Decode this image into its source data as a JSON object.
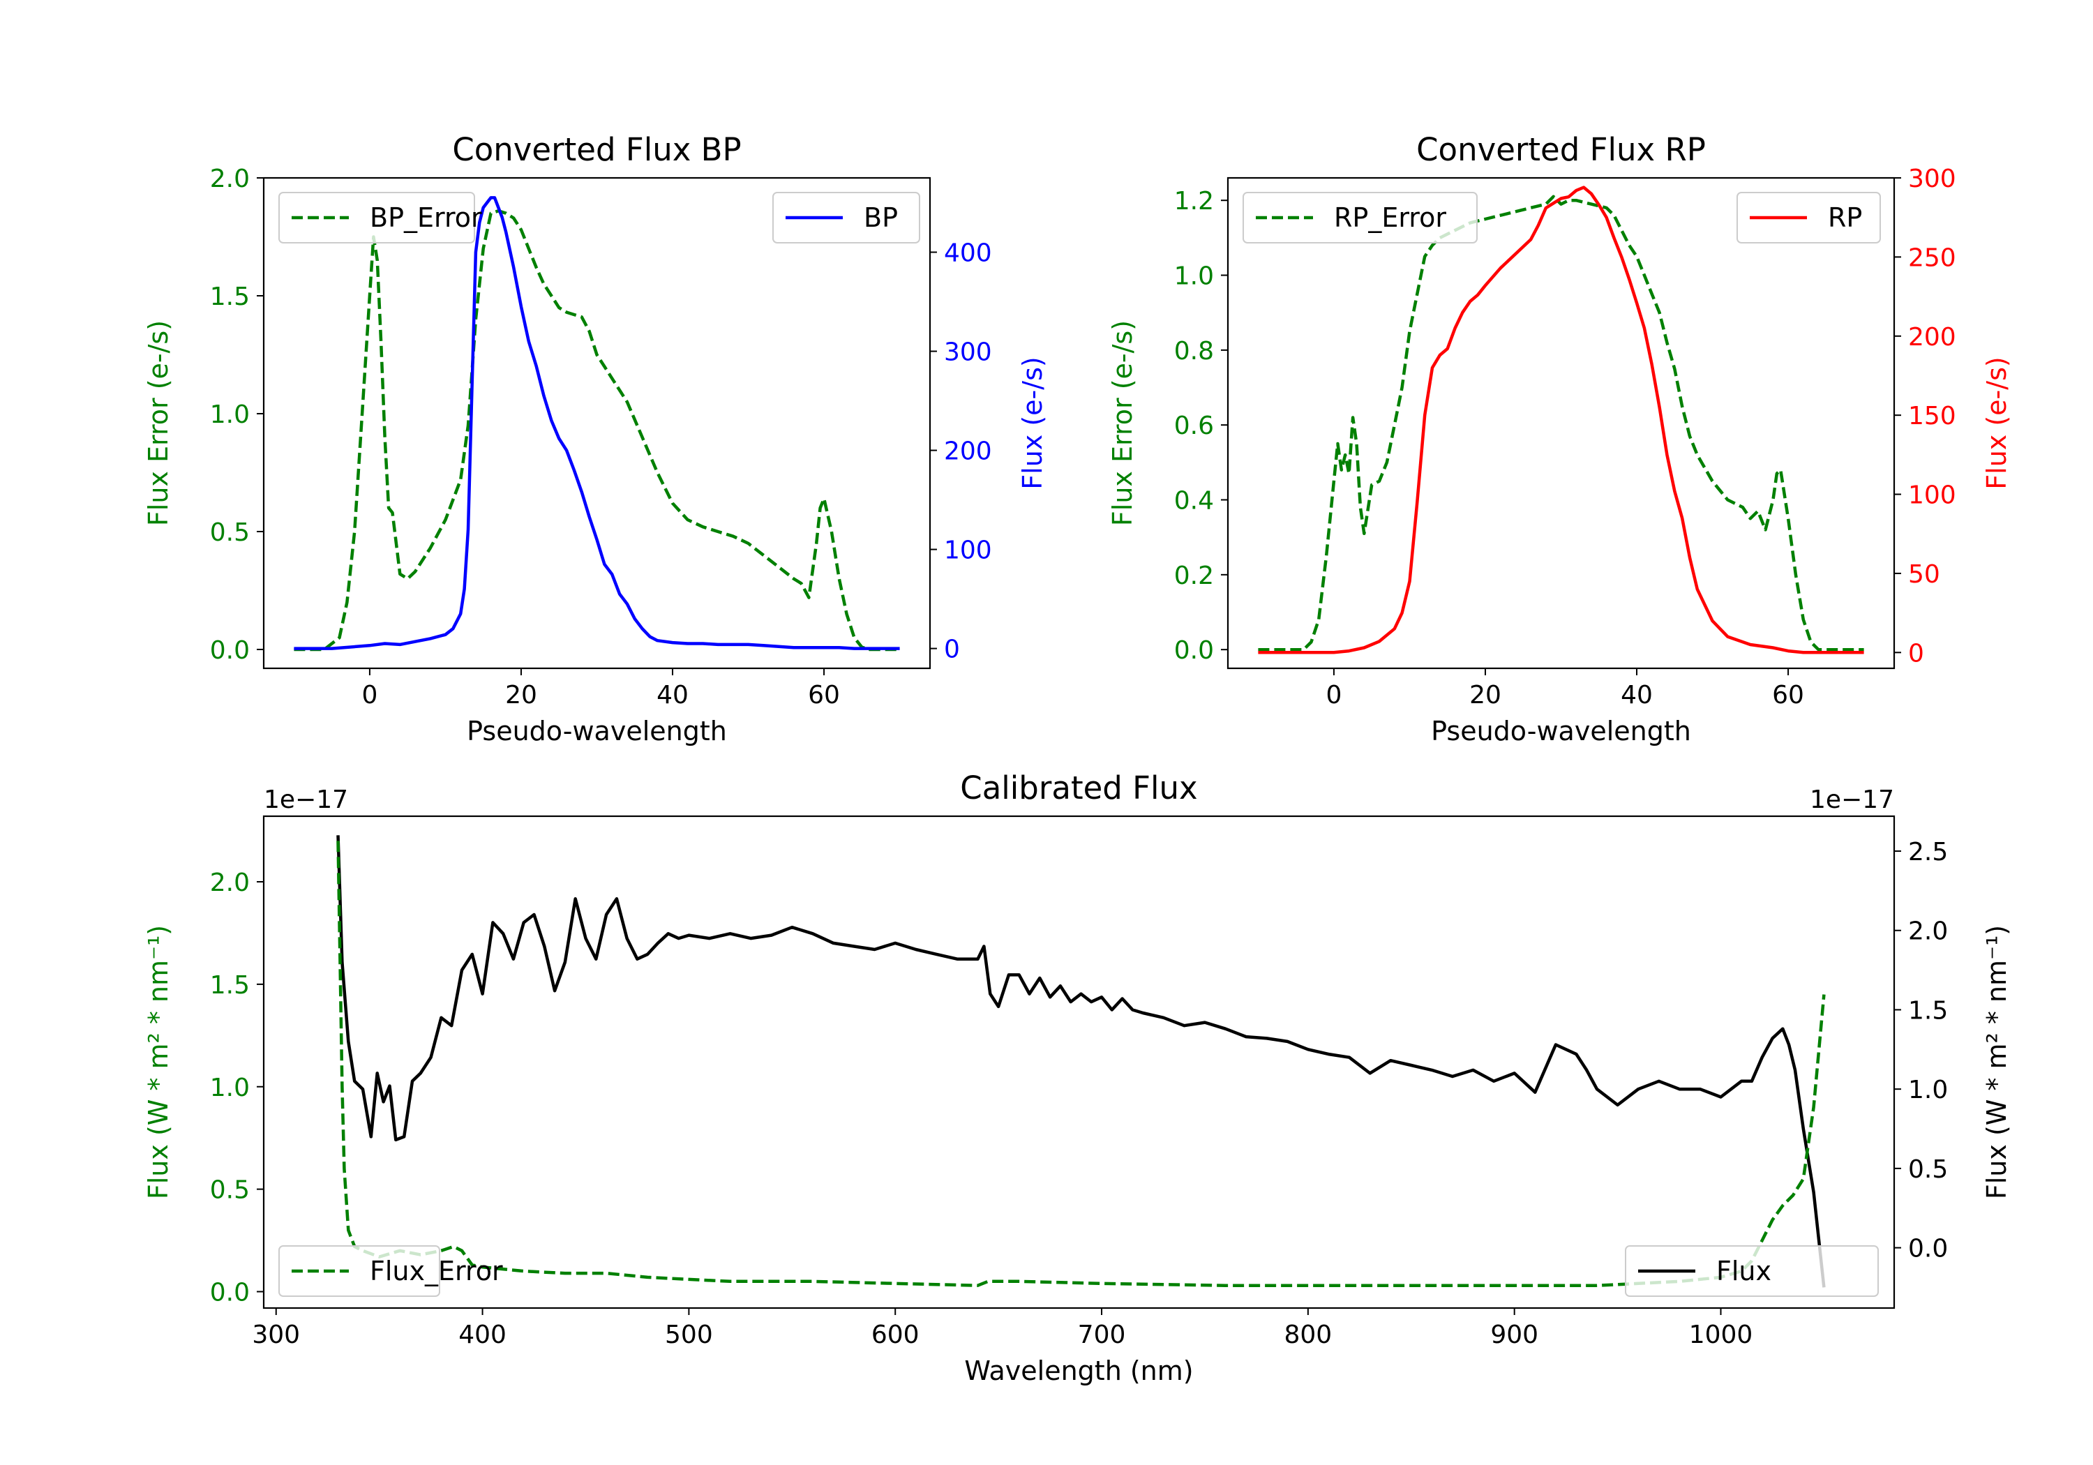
{
  "chart_data": [
    {
      "type": "line",
      "title": "Converted Flux BP",
      "xlabel": "Pseudo-wavelength",
      "ylabel_left": "Flux Error (e-/s)",
      "ylabel_right": "Flux (e-/s)",
      "xlim": [
        -14,
        74
      ],
      "ylim_left": [
        -0.08,
        2.0
      ],
      "ylim_right": [
        -20,
        475
      ],
      "xticks": [
        0,
        20,
        40,
        60
      ],
      "yticks_left": [
        0.0,
        0.5,
        1.0,
        1.5,
        2.0
      ],
      "yticks_right": [
        0,
        100,
        200,
        300,
        400
      ],
      "left_color": "#008000",
      "right_color": "#0000ff",
      "legend_left": "top-left",
      "legend_right": "top-right",
      "series": [
        {
          "name": "BP_Error",
          "axis": "left",
          "style": "dashed",
          "color": "#008000",
          "x": [
            -10,
            -6,
            -4,
            -3,
            -2,
            -1,
            0,
            0.5,
            1,
            1.5,
            2,
            2.5,
            3,
            3.5,
            4,
            5,
            6,
            8,
            10,
            12,
            13,
            14,
            15,
            16,
            17,
            18,
            19,
            20,
            21,
            22,
            23,
            24,
            25,
            26,
            27,
            28,
            29,
            30,
            31,
            32,
            34,
            36,
            38,
            40,
            42,
            44,
            46,
            48,
            50,
            52,
            54,
            56,
            57,
            58,
            59,
            59.5,
            60,
            61,
            62,
            63,
            64,
            65,
            66,
            70
          ],
          "values": [
            0,
            0,
            0.05,
            0.2,
            0.5,
            1.0,
            1.5,
            1.75,
            1.65,
            1.3,
            0.9,
            0.6,
            0.58,
            0.45,
            0.32,
            0.3,
            0.33,
            0.43,
            0.55,
            0.72,
            0.95,
            1.4,
            1.7,
            1.85,
            1.86,
            1.85,
            1.83,
            1.78,
            1.7,
            1.62,
            1.55,
            1.5,
            1.45,
            1.43,
            1.42,
            1.41,
            1.35,
            1.25,
            1.2,
            1.15,
            1.05,
            0.9,
            0.75,
            0.62,
            0.55,
            0.52,
            0.5,
            0.48,
            0.45,
            0.4,
            0.35,
            0.3,
            0.28,
            0.22,
            0.45,
            0.6,
            0.64,
            0.5,
            0.3,
            0.15,
            0.05,
            0.01,
            0,
            0
          ]
        },
        {
          "name": "BP",
          "axis": "right",
          "style": "solid",
          "color": "#0000ff",
          "x": [
            -10,
            -5,
            0,
            2,
            4,
            6,
            8,
            10,
            11,
            12,
            12.5,
            13,
            13.5,
            14,
            14.5,
            15,
            15.5,
            16,
            16.5,
            17,
            17.5,
            18,
            19,
            20,
            21,
            22,
            23,
            24,
            25,
            26,
            27,
            28,
            29,
            30,
            31,
            32,
            33,
            34,
            35,
            36,
            37,
            38,
            40,
            42,
            44,
            46,
            48,
            50,
            52,
            54,
            56,
            58,
            60,
            62,
            64,
            66,
            70
          ],
          "values": [
            0,
            0,
            3,
            5,
            4,
            7,
            10,
            14,
            20,
            35,
            60,
            120,
            260,
            400,
            430,
            445,
            450,
            455,
            455,
            445,
            435,
            420,
            385,
            345,
            310,
            285,
            255,
            230,
            212,
            200,
            180,
            158,
            133,
            110,
            85,
            75,
            55,
            45,
            30,
            20,
            12,
            8,
            6,
            5,
            5,
            4,
            4,
            4,
            3,
            2,
            1,
            1,
            1,
            1,
            0,
            0,
            0
          ]
        }
      ]
    },
    {
      "type": "line",
      "title": "Converted Flux RP",
      "xlabel": "Pseudo-wavelength",
      "ylabel_left": "Flux Error (e-/s)",
      "ylabel_right": "Flux (e-/s)",
      "xlim": [
        -14,
        74
      ],
      "ylim_left": [
        -0.05,
        1.26
      ],
      "ylim_right": [
        -10,
        300
      ],
      "xticks": [
        0,
        20,
        40,
        60
      ],
      "yticks_left": [
        0.0,
        0.2,
        0.4,
        0.6,
        0.8,
        1.0,
        1.2
      ],
      "yticks_right": [
        0,
        50,
        100,
        150,
        200,
        250,
        300
      ],
      "left_color": "#008000",
      "right_color": "#ff0000",
      "legend_left": "top-left",
      "legend_right": "top-right",
      "series": [
        {
          "name": "RP_Error",
          "axis": "left",
          "style": "dashed",
          "color": "#008000",
          "x": [
            -10,
            -4,
            -3,
            -2,
            -1,
            0,
            0.5,
            1,
            1.5,
            2,
            2.5,
            3,
            3.5,
            4,
            5,
            6,
            7,
            8,
            9,
            10,
            11,
            12,
            13,
            14,
            15,
            16,
            18,
            20,
            22,
            24,
            26,
            28,
            29,
            30,
            31,
            32,
            34,
            36,
            37,
            38,
            39,
            40,
            41,
            42,
            43,
            44,
            45,
            46,
            47,
            48,
            50,
            52,
            54,
            55,
            56,
            57,
            58,
            58.5,
            59,
            60,
            61,
            62,
            63,
            64,
            70
          ],
          "values": [
            0,
            0,
            0.02,
            0.08,
            0.25,
            0.45,
            0.55,
            0.48,
            0.52,
            0.47,
            0.62,
            0.55,
            0.38,
            0.31,
            0.44,
            0.45,
            0.5,
            0.6,
            0.7,
            0.85,
            0.95,
            1.05,
            1.08,
            1.1,
            1.11,
            1.12,
            1.14,
            1.15,
            1.16,
            1.17,
            1.18,
            1.19,
            1.21,
            1.19,
            1.2,
            1.2,
            1.19,
            1.18,
            1.16,
            1.12,
            1.08,
            1.05,
            1.0,
            0.95,
            0.9,
            0.82,
            0.75,
            0.65,
            0.57,
            0.52,
            0.45,
            0.4,
            0.38,
            0.35,
            0.37,
            0.32,
            0.4,
            0.47,
            0.48,
            0.35,
            0.2,
            0.08,
            0.02,
            0,
            0
          ]
        },
        {
          "name": "RP",
          "axis": "right",
          "style": "solid",
          "color": "#ff0000",
          "x": [
            -10,
            -5,
            0,
            2,
            4,
            6,
            8,
            9,
            10,
            11,
            12,
            13,
            14,
            15,
            16,
            17,
            18,
            19,
            20,
            22,
            24,
            26,
            27,
            28,
            29,
            30,
            31,
            32,
            33,
            34,
            35,
            36,
            37,
            38,
            39,
            40,
            41,
            42,
            43,
            44,
            45,
            46,
            47,
            48,
            50,
            52,
            55,
            58,
            60,
            62,
            64,
            66,
            70
          ],
          "values": [
            0,
            0,
            0,
            1,
            3,
            7,
            15,
            25,
            45,
            95,
            150,
            180,
            188,
            192,
            205,
            215,
            222,
            226,
            232,
            243,
            252,
            261,
            270,
            281,
            284,
            287,
            288,
            292,
            294,
            290,
            283,
            275,
            262,
            250,
            236,
            221,
            205,
            182,
            155,
            125,
            102,
            85,
            60,
            40,
            20,
            10,
            5,
            3,
            1,
            0,
            0,
            0,
            0
          ]
        }
      ]
    },
    {
      "type": "line",
      "title": "Calibrated Flux",
      "xlabel": "Wavelength (nm)",
      "ylabel_left": "Flux (W * m² * nm⁻¹)",
      "ylabel_right": "Flux (W * m² * nm⁻¹)",
      "offset_left": "1e−17",
      "offset_right": "1e−17",
      "xlim": [
        294,
        1084
      ],
      "ylim_left": [
        -0.08,
        2.32
      ],
      "ylim_right": [
        -0.38,
        2.72
      ],
      "xticks": [
        300,
        400,
        500,
        600,
        700,
        800,
        900,
        1000
      ],
      "yticks_left": [
        0.0,
        0.5,
        1.0,
        1.5,
        2.0
      ],
      "yticks_right": [
        0.0,
        0.5,
        1.0,
        1.5,
        2.0,
        2.5
      ],
      "left_color": "#008000",
      "right_color": "#000000",
      "legend_left": "bottom-left",
      "legend_right": "bottom-right",
      "series": [
        {
          "name": "Flux",
          "axis": "right",
          "style": "solid",
          "color": "#000000",
          "x": [
            330,
            332,
            335,
            338,
            342,
            346,
            349,
            352,
            355,
            358,
            362,
            366,
            370,
            375,
            380,
            385,
            390,
            395,
            400,
            405,
            410,
            415,
            420,
            425,
            430,
            435,
            440,
            445,
            450,
            455,
            460,
            465,
            470,
            475,
            480,
            485,
            490,
            495,
            500,
            510,
            520,
            530,
            540,
            550,
            560,
            570,
            580,
            590,
            600,
            610,
            620,
            630,
            640,
            643,
            646,
            650,
            655,
            660,
            665,
            670,
            675,
            680,
            685,
            690,
            695,
            700,
            705,
            710,
            715,
            720,
            730,
            740,
            750,
            760,
            770,
            780,
            790,
            800,
            810,
            820,
            830,
            840,
            850,
            860,
            870,
            880,
            890,
            900,
            910,
            920,
            930,
            935,
            940,
            950,
            960,
            970,
            980,
            990,
            1000,
            1010,
            1015,
            1020,
            1025,
            1030,
            1033,
            1036,
            1040,
            1045,
            1050
          ],
          "values": [
            2.6,
            1.8,
            1.3,
            1.05,
            1.0,
            0.7,
            1.1,
            0.92,
            1.02,
            0.68,
            0.7,
            1.05,
            1.1,
            1.2,
            1.45,
            1.4,
            1.75,
            1.85,
            1.6,
            2.05,
            1.98,
            1.82,
            2.05,
            2.1,
            1.9,
            1.62,
            1.8,
            2.2,
            1.95,
            1.82,
            2.1,
            2.2,
            1.95,
            1.82,
            1.85,
            1.92,
            1.98,
            1.95,
            1.97,
            1.95,
            1.98,
            1.95,
            1.97,
            2.02,
            1.98,
            1.92,
            1.9,
            1.88,
            1.92,
            1.88,
            1.85,
            1.82,
            1.82,
            1.9,
            1.6,
            1.52,
            1.72,
            1.72,
            1.6,
            1.7,
            1.58,
            1.65,
            1.55,
            1.6,
            1.55,
            1.58,
            1.5,
            1.57,
            1.5,
            1.48,
            1.45,
            1.4,
            1.42,
            1.38,
            1.33,
            1.32,
            1.3,
            1.25,
            1.22,
            1.2,
            1.1,
            1.18,
            1.15,
            1.12,
            1.08,
            1.12,
            1.05,
            1.1,
            0.98,
            1.28,
            1.22,
            1.12,
            1.0,
            0.9,
            1.0,
            1.05,
            1.0,
            1.0,
            0.95,
            1.05,
            1.05,
            1.2,
            1.32,
            1.38,
            1.28,
            1.12,
            0.75,
            0.35,
            -0.25
          ]
        },
        {
          "name": "Flux_Error",
          "axis": "left",
          "style": "dashed",
          "color": "#008000",
          "x": [
            330,
            331,
            332,
            333,
            335,
            338,
            342,
            350,
            360,
            370,
            380,
            386,
            390,
            395,
            400,
            420,
            440,
            460,
            480,
            500,
            520,
            560,
            600,
            640,
            645,
            660,
            700,
            760,
            800,
            860,
            900,
            940,
            960,
            980,
            1000,
            1010,
            1015,
            1020,
            1025,
            1030,
            1035,
            1040,
            1045,
            1050
          ],
          "values": [
            2.2,
            1.6,
            1.0,
            0.6,
            0.3,
            0.22,
            0.2,
            0.17,
            0.2,
            0.18,
            0.2,
            0.22,
            0.2,
            0.13,
            0.12,
            0.1,
            0.09,
            0.09,
            0.07,
            0.06,
            0.05,
            0.05,
            0.04,
            0.03,
            0.05,
            0.05,
            0.04,
            0.03,
            0.03,
            0.03,
            0.03,
            0.03,
            0.04,
            0.05,
            0.07,
            0.1,
            0.15,
            0.25,
            0.35,
            0.42,
            0.47,
            0.55,
            0.9,
            1.45
          ]
        }
      ]
    }
  ]
}
